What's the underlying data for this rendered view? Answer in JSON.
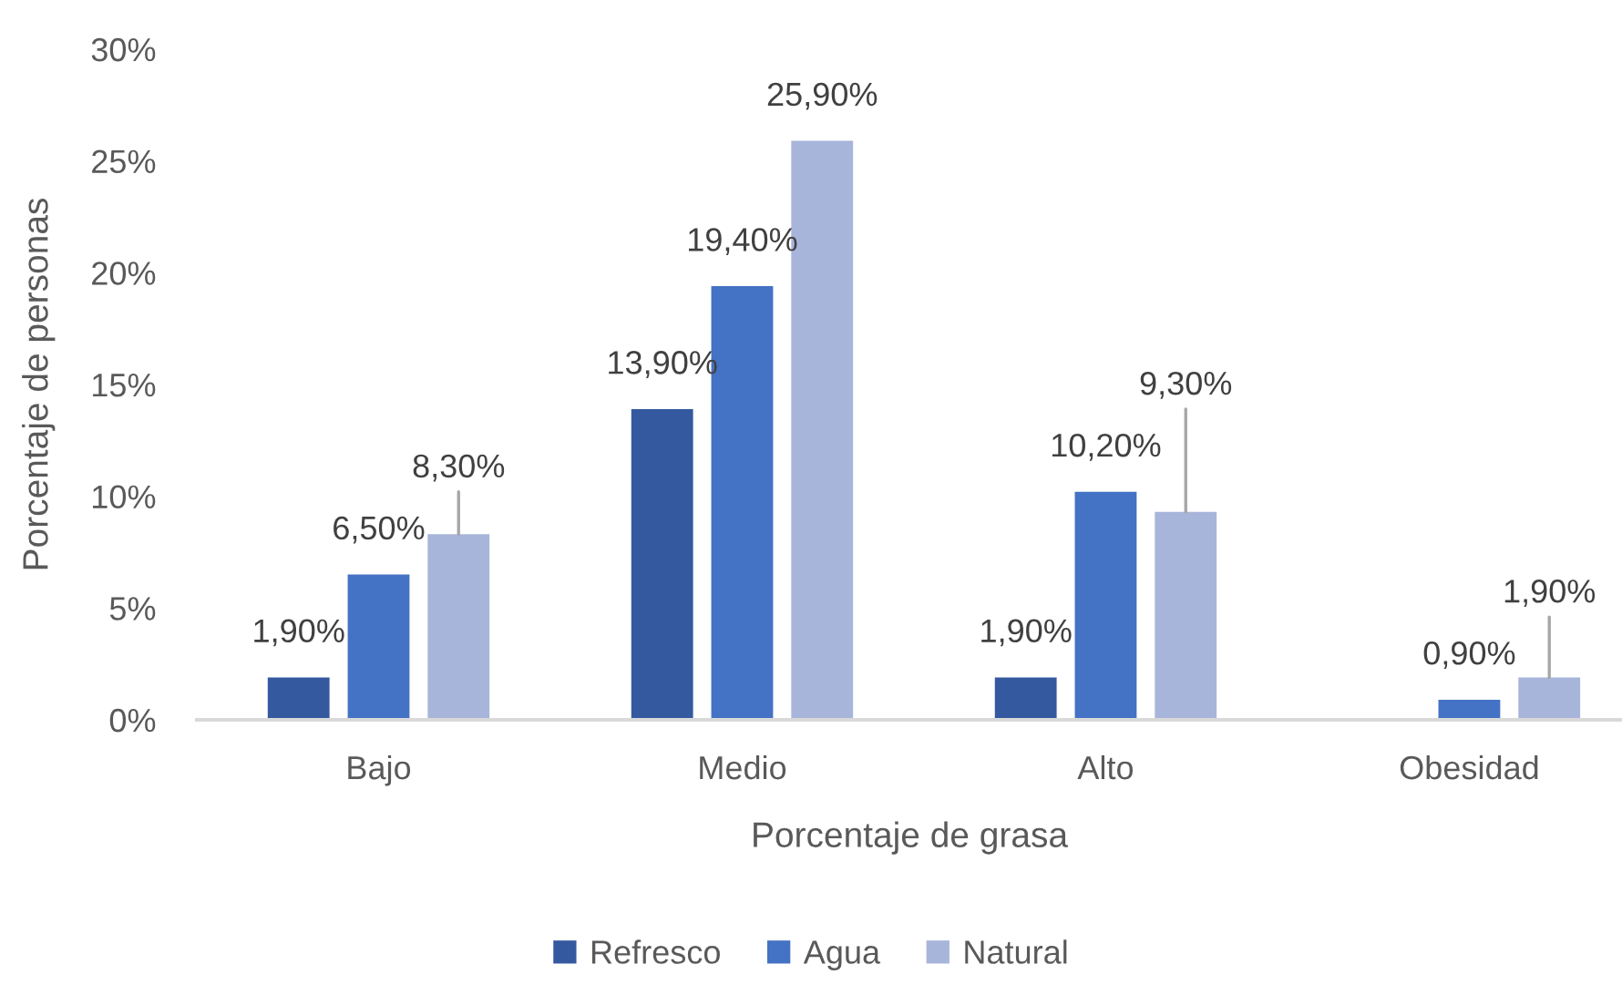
{
  "chart_data": {
    "type": "bar",
    "xlabel": "Porcentaje de grasa",
    "ylabel": "Porcentaje de personas",
    "categories": [
      "Bajo",
      "Medio",
      "Alto",
      "Obesidad"
    ],
    "series": [
      {
        "name": "Refresco",
        "color": "#35599f",
        "values": [
          1.9,
          13.9,
          1.9,
          null
        ],
        "value_labels": [
          "1,90%",
          "13,90%",
          "1,90%",
          null
        ]
      },
      {
        "name": "Agua",
        "color": "#4472c4",
        "values": [
          6.5,
          19.4,
          10.2,
          0.9
        ],
        "value_labels": [
          "6,50%",
          "19,40%",
          "10,20%",
          "0,90%"
        ]
      },
      {
        "name": "Natural",
        "color": "#a8b5da",
        "values": [
          8.3,
          25.9,
          9.3,
          1.9
        ],
        "value_labels": [
          "8,30%",
          "25,90%",
          "9,30%",
          "1,90%"
        ]
      }
    ],
    "ylim": [
      0,
      30
    ],
    "yticks": [
      {
        "value": 0,
        "label": "0%"
      },
      {
        "value": 5,
        "label": "5%"
      },
      {
        "value": 10,
        "label": "10%"
      },
      {
        "value": 15,
        "label": "15%"
      },
      {
        "value": 20,
        "label": "20%"
      },
      {
        "value": 25,
        "label": "25%"
      },
      {
        "value": 30,
        "label": "30%"
      }
    ],
    "grid": false,
    "legend": "bottom"
  }
}
